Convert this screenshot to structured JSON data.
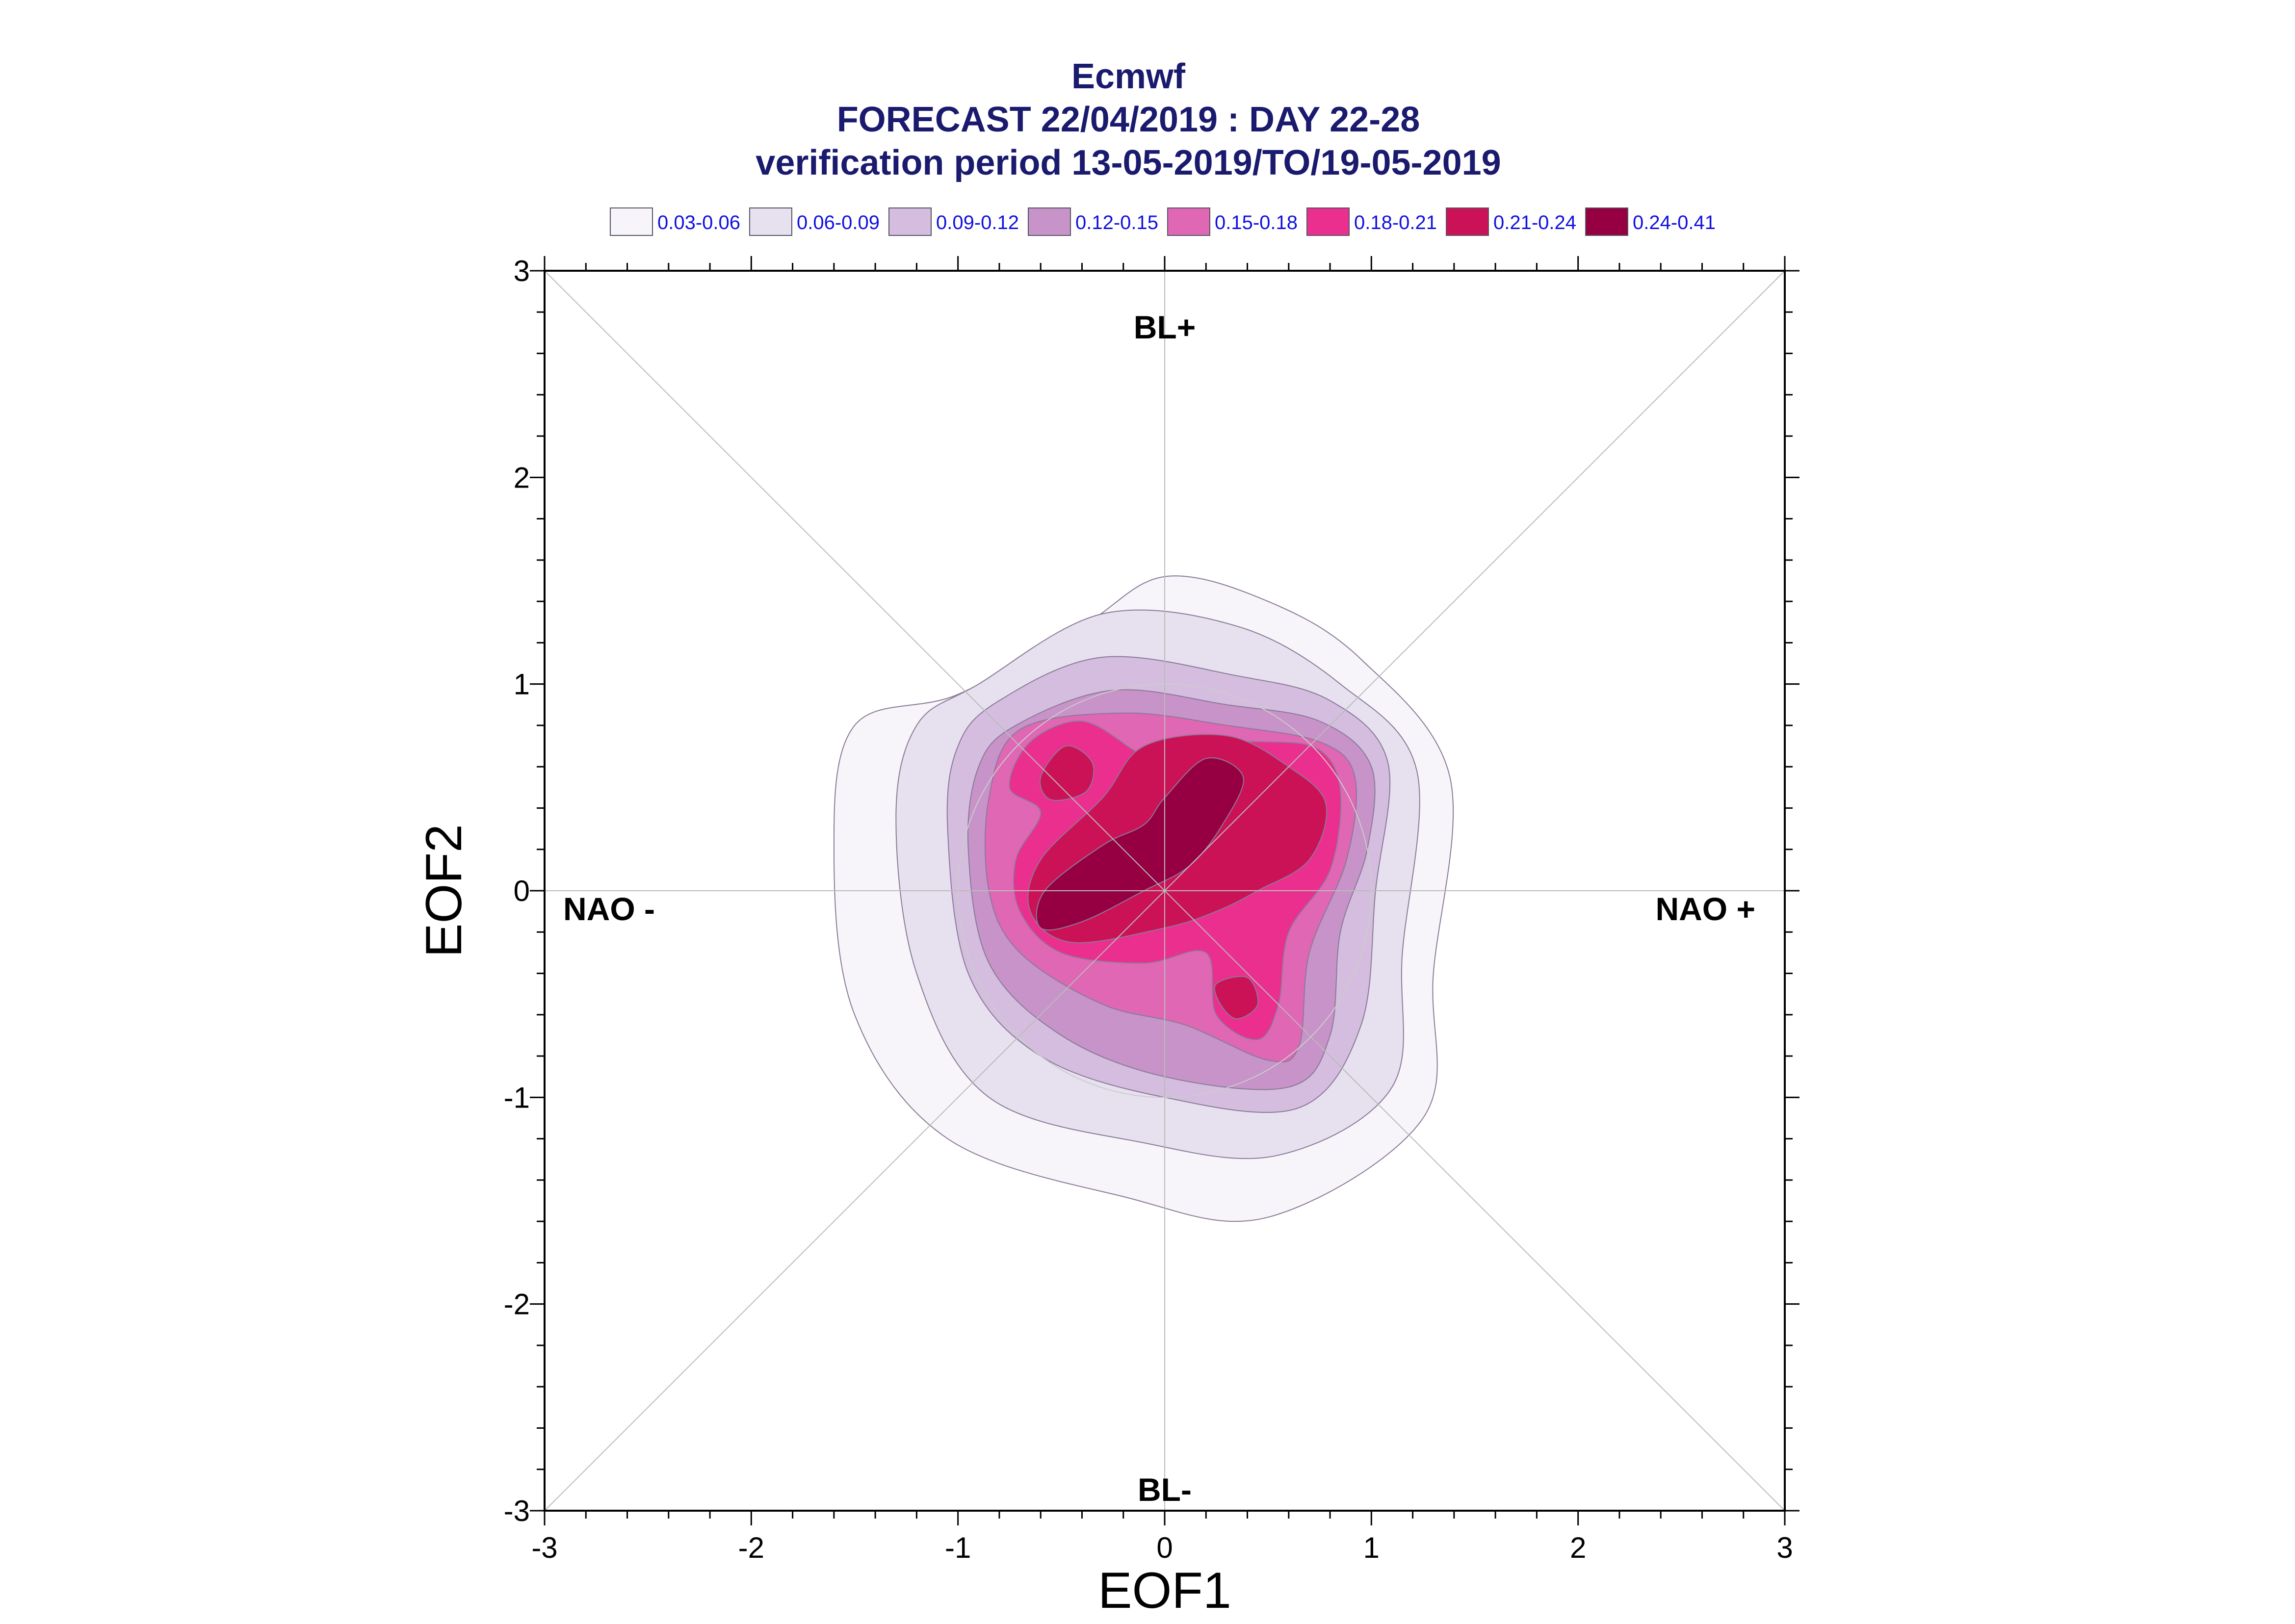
{
  "title_lines": [
    "Ecmwf",
    "FORECAST 22/04/2019 : DAY 22-28",
    "verification period 13-05-2019/TO/19-05-2019"
  ],
  "legend": [
    {
      "label": "0.03-0.06",
      "color": "#f7f5fa"
    },
    {
      "label": "0.06-0.09",
      "color": "#e6e0ef"
    },
    {
      "label": "0.09-0.12",
      "color": "#d4bddf"
    },
    {
      "label": "0.12-0.15",
      "color": "#c793c8"
    },
    {
      "label": "0.15-0.18",
      "color": "#df67b4"
    },
    {
      "label": "0.18-0.21",
      "color": "#ea2f8e"
    },
    {
      "label": "0.21-0.24",
      "color": "#cc1256"
    },
    {
      "label": "0.24-0.41",
      "color": "#960043"
    }
  ],
  "regimes": {
    "top": "BL+",
    "bottom": "BL-",
    "left": "NAO -",
    "right": "NAO +"
  },
  "chart_data": {
    "type": "heatmap",
    "description_kind": "filled probability-density contours in EOF1/EOF2 phase space",
    "xlabel": "EOF1",
    "ylabel": "EOF2",
    "xlim": [
      -3,
      3
    ],
    "ylim": [
      -3,
      3
    ],
    "xticks": [
      "-3",
      "-2",
      "-1",
      "0",
      "1",
      "2",
      "3"
    ],
    "yticks": [
      "-3",
      "-2",
      "-1",
      "0",
      "1",
      "2",
      "3"
    ],
    "levels": [
      "0.03-0.06",
      "0.06-0.09",
      "0.09-0.12",
      "0.12-0.15",
      "0.15-0.18",
      "0.18-0.21",
      "0.21-0.24",
      "0.24-0.41"
    ],
    "contours": [
      {
        "level": 0,
        "points": [
          [
            -0.4,
            1.28
          ],
          [
            0.0,
            1.52
          ],
          [
            0.5,
            1.4
          ],
          [
            0.95,
            1.12
          ],
          [
            1.38,
            0.55
          ],
          [
            1.3,
            -0.4
          ],
          [
            1.25,
            -1.1
          ],
          [
            0.5,
            -1.58
          ],
          [
            -0.2,
            -1.48
          ],
          [
            -1.05,
            -1.2
          ],
          [
            -1.5,
            -0.6
          ],
          [
            -1.6,
            0.2
          ],
          [
            -1.5,
            0.8
          ],
          [
            -1.0,
            0.95
          ]
        ]
      },
      {
        "level": 1,
        "points": [
          [
            -0.9,
            1.0
          ],
          [
            -0.3,
            1.34
          ],
          [
            0.35,
            1.28
          ],
          [
            0.85,
            1.0
          ],
          [
            1.22,
            0.58
          ],
          [
            1.15,
            -0.3
          ],
          [
            1.1,
            -0.95
          ],
          [
            0.55,
            -1.28
          ],
          [
            -0.1,
            -1.22
          ],
          [
            -0.85,
            -1.0
          ],
          [
            -1.2,
            -0.4
          ],
          [
            -1.3,
            0.35
          ],
          [
            -1.2,
            0.8
          ]
        ]
      },
      {
        "level": 2,
        "points": [
          [
            -0.8,
            0.92
          ],
          [
            -0.3,
            1.13
          ],
          [
            0.35,
            1.04
          ],
          [
            0.8,
            0.92
          ],
          [
            1.08,
            0.62
          ],
          [
            1.02,
            0.0
          ],
          [
            0.95,
            -0.65
          ],
          [
            0.65,
            -1.05
          ],
          [
            0.0,
            -1.0
          ],
          [
            -0.6,
            -0.8
          ],
          [
            -0.95,
            -0.4
          ],
          [
            -1.05,
            0.3
          ],
          [
            -1.0,
            0.7
          ]
        ]
      },
      {
        "level": 3,
        "points": [
          [
            -0.72,
            0.8
          ],
          [
            -0.25,
            0.97
          ],
          [
            0.3,
            0.9
          ],
          [
            0.75,
            0.82
          ],
          [
            1.0,
            0.6
          ],
          [
            0.98,
            0.2
          ],
          [
            0.85,
            -0.2
          ],
          [
            0.8,
            -0.7
          ],
          [
            0.6,
            -0.95
          ],
          [
            0.0,
            -0.9
          ],
          [
            -0.5,
            -0.7
          ],
          [
            -0.85,
            -0.35
          ],
          [
            -0.95,
            0.2
          ],
          [
            -0.9,
            0.6
          ]
        ]
      },
      {
        "level": 4,
        "points": [
          [
            -0.7,
            0.78
          ],
          [
            -0.2,
            0.86
          ],
          [
            0.3,
            0.8
          ],
          [
            0.75,
            0.72
          ],
          [
            0.92,
            0.55
          ],
          [
            0.88,
            0.15
          ],
          [
            0.7,
            -0.3
          ],
          [
            0.65,
            -0.75
          ],
          [
            0.5,
            -0.82
          ],
          [
            0.1,
            -0.65
          ],
          [
            -0.3,
            -0.55
          ],
          [
            -0.7,
            -0.3
          ],
          [
            -0.85,
            0.0
          ],
          [
            -0.85,
            0.45
          ]
        ]
      },
      {
        "level": 5,
        "points": [
          [
            -0.65,
            0.72
          ],
          [
            -0.4,
            0.82
          ],
          [
            -0.15,
            0.68
          ],
          [
            -0.05,
            0.62
          ],
          [
            0.1,
            0.7
          ],
          [
            0.5,
            0.72
          ],
          [
            0.75,
            0.68
          ],
          [
            0.85,
            0.48
          ],
          [
            0.8,
            0.1
          ],
          [
            0.6,
            -0.2
          ],
          [
            0.55,
            -0.55
          ],
          [
            0.45,
            -0.72
          ],
          [
            0.25,
            -0.6
          ],
          [
            0.2,
            -0.3
          ],
          [
            -0.1,
            -0.35
          ],
          [
            -0.5,
            -0.3
          ],
          [
            -0.7,
            -0.1
          ],
          [
            -0.72,
            0.15
          ],
          [
            -0.6,
            0.38
          ],
          [
            -0.75,
            0.5
          ]
        ]
      },
      {
        "level": 6,
        "points": [
          [
            -0.3,
            0.45
          ],
          [
            -0.1,
            0.7
          ],
          [
            0.3,
            0.75
          ],
          [
            0.6,
            0.6
          ],
          [
            0.78,
            0.42
          ],
          [
            0.7,
            0.15
          ],
          [
            0.45,
            0.0
          ],
          [
            0.25,
            -0.1
          ],
          [
            0.0,
            -0.18
          ],
          [
            -0.45,
            -0.25
          ],
          [
            -0.65,
            -0.1
          ],
          [
            -0.6,
            0.15
          ]
        ]
      },
      {
        "level": 6,
        "points": [
          [
            -0.6,
            0.55
          ],
          [
            -0.48,
            0.7
          ],
          [
            -0.35,
            0.62
          ],
          [
            -0.38,
            0.48
          ],
          [
            -0.55,
            0.44
          ]
        ]
      },
      {
        "level": 6,
        "points": [
          [
            0.25,
            -0.45
          ],
          [
            0.4,
            -0.42
          ],
          [
            0.45,
            -0.55
          ],
          [
            0.35,
            -0.62
          ],
          [
            0.27,
            -0.55
          ]
        ]
      },
      {
        "level": 7,
        "points": [
          [
            -0.3,
            0.22
          ],
          [
            -0.1,
            0.32
          ],
          [
            0.0,
            0.45
          ],
          [
            0.2,
            0.64
          ],
          [
            0.38,
            0.55
          ],
          [
            0.28,
            0.32
          ],
          [
            0.12,
            0.12
          ],
          [
            -0.1,
            0.0
          ],
          [
            -0.4,
            -0.15
          ],
          [
            -0.6,
            -0.18
          ],
          [
            -0.58,
            0.0
          ]
        ]
      }
    ]
  }
}
